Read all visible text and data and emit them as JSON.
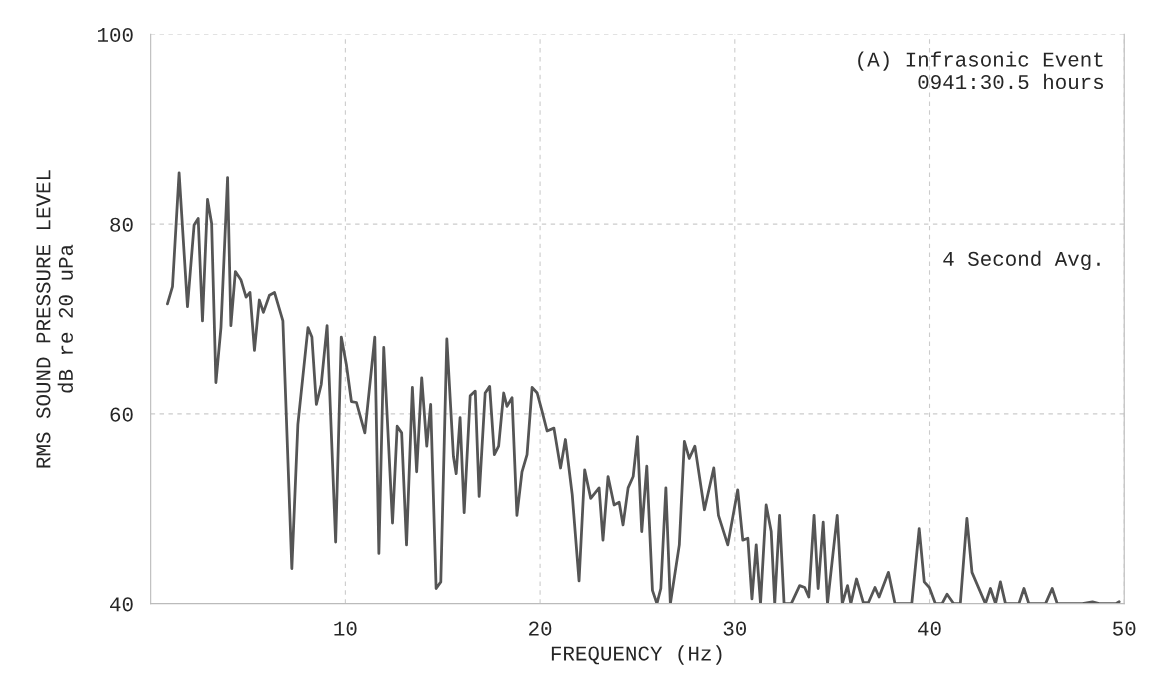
{
  "chart_data": {
    "type": "line",
    "xlabel": "FREQUENCY (Hz)",
    "ylabel": "RMS SOUND PRESSURE LEVEL\ndB re 20 uPa",
    "annotations": [
      "(A) Infrasonic Event\n    0941:30.5 hours",
      "4 Second Avg."
    ],
    "xlim": [
      0,
      50
    ],
    "xticks": [
      10,
      20,
      30,
      40,
      50
    ],
    "ylim": [
      40,
      100
    ],
    "yticks": [
      40,
      60,
      80,
      100
    ],
    "grid": true,
    "marker": "none",
    "line_style": "solid",
    "series": [
      {
        "color": "#555555",
        "x": [
          0.86,
          1.12,
          1.46,
          1.89,
          2.23,
          2.44,
          2.66,
          2.92,
          3.13,
          3.35,
          3.61,
          3.95,
          4.12,
          4.35,
          4.64,
          4.9,
          5.1,
          5.33,
          5.58,
          5.79,
          6.1,
          6.36,
          6.79,
          7.25,
          7.56,
          8.08,
          8.28,
          8.51,
          8.76,
          9.06,
          9.5,
          9.79,
          10.05,
          10.31,
          10.57,
          11.0,
          11.51,
          11.72,
          11.97,
          12.42,
          12.66,
          12.89,
          13.14,
          13.44,
          13.66,
          13.92,
          14.18,
          14.38,
          14.66,
          14.9,
          15.21,
          15.55,
          15.69,
          15.89,
          16.1,
          16.41,
          16.67,
          16.87,
          17.18,
          17.41,
          17.65,
          17.87,
          18.13,
          18.3,
          18.56,
          18.81,
          19.07,
          19.33,
          19.59,
          19.85,
          20.1,
          20.36,
          20.71,
          21.05,
          21.3,
          21.65,
          22.0,
          22.29,
          22.6,
          23.03,
          23.23,
          23.49,
          23.8,
          24.06,
          24.26,
          24.52,
          24.78,
          25.0,
          25.22,
          25.48,
          25.77,
          26.0,
          26.2,
          26.46,
          26.69,
          27.15,
          27.41,
          27.66,
          27.95,
          28.44,
          28.92,
          29.16,
          29.64,
          30.15,
          30.41,
          30.67,
          30.88,
          31.1,
          31.32,
          31.61,
          31.87,
          32.05,
          32.3,
          32.53,
          32.9,
          33.33,
          33.59,
          33.8,
          34.07,
          34.28,
          34.54,
          34.76,
          35.26,
          35.52,
          35.79,
          35.96,
          36.25,
          36.6,
          36.86,
          37.2,
          37.41,
          37.89,
          38.23,
          38.75,
          39.09,
          39.47,
          39.73,
          39.99,
          40.3,
          40.64,
          40.9,
          41.24,
          41.58,
          41.92,
          42.18,
          42.87,
          43.13,
          43.39,
          43.64,
          43.9,
          44.59,
          44.85,
          45.1,
          45.62,
          45.96,
          46.3,
          46.56,
          47.59,
          47.85,
          48.37,
          48.71,
          49.57,
          49.74
        ],
        "values": [
          71.6,
          73.4,
          85.4,
          71.3,
          79.9,
          80.6,
          69.8,
          82.6,
          80.1,
          63.3,
          69.1,
          84.9,
          69.3,
          75.0,
          74.1,
          72.3,
          72.8,
          66.7,
          72.0,
          70.7,
          72.5,
          72.8,
          69.8,
          43.7,
          58.9,
          69.1,
          68.1,
          61.0,
          63.1,
          69.3,
          46.5,
          68.1,
          65.2,
          61.3,
          61.2,
          58.0,
          68.1,
          45.3,
          67.0,
          48.5,
          58.7,
          58.0,
          46.2,
          62.8,
          53.9,
          63.8,
          56.6,
          61.0,
          41.6,
          42.3,
          67.9,
          55.5,
          53.7,
          59.6,
          49.6,
          61.9,
          62.4,
          51.3,
          62.2,
          62.9,
          55.7,
          56.6,
          62.2,
          60.8,
          61.7,
          49.3,
          53.9,
          55.7,
          62.8,
          62.2,
          60.3,
          58.2,
          58.5,
          54.3,
          57.3,
          51.5,
          42.4,
          54.1,
          51.1,
          52.2,
          46.7,
          53.4,
          50.4,
          50.7,
          48.3,
          52.2,
          53.4,
          57.6,
          47.6,
          54.5,
          41.4,
          40.0,
          41.6,
          52.2,
          40.0,
          46.2,
          57.1,
          55.3,
          56.6,
          49.9,
          54.3,
          49.3,
          46.2,
          52.0,
          46.7,
          46.9,
          40.5,
          46.2,
          40.0,
          50.4,
          47.6,
          40.0,
          49.3,
          40.0,
          40.0,
          41.9,
          41.7,
          40.7,
          49.3,
          41.6,
          48.6,
          40.0,
          49.3,
          40.0,
          41.9,
          40.0,
          42.6,
          40.1,
          40.1,
          41.7,
          40.7,
          43.3,
          40.0,
          40.0,
          40.0,
          47.9,
          42.3,
          41.7,
          40.0,
          40.0,
          41.0,
          40.0,
          40.0,
          49.0,
          43.3,
          40.0,
          41.6,
          40.0,
          42.3,
          40.0,
          40.0,
          41.6,
          40.0,
          40.0,
          40.0,
          41.6,
          40.0,
          40.0,
          40.0,
          40.2,
          40.0,
          40.0,
          40.2
        ]
      }
    ]
  }
}
